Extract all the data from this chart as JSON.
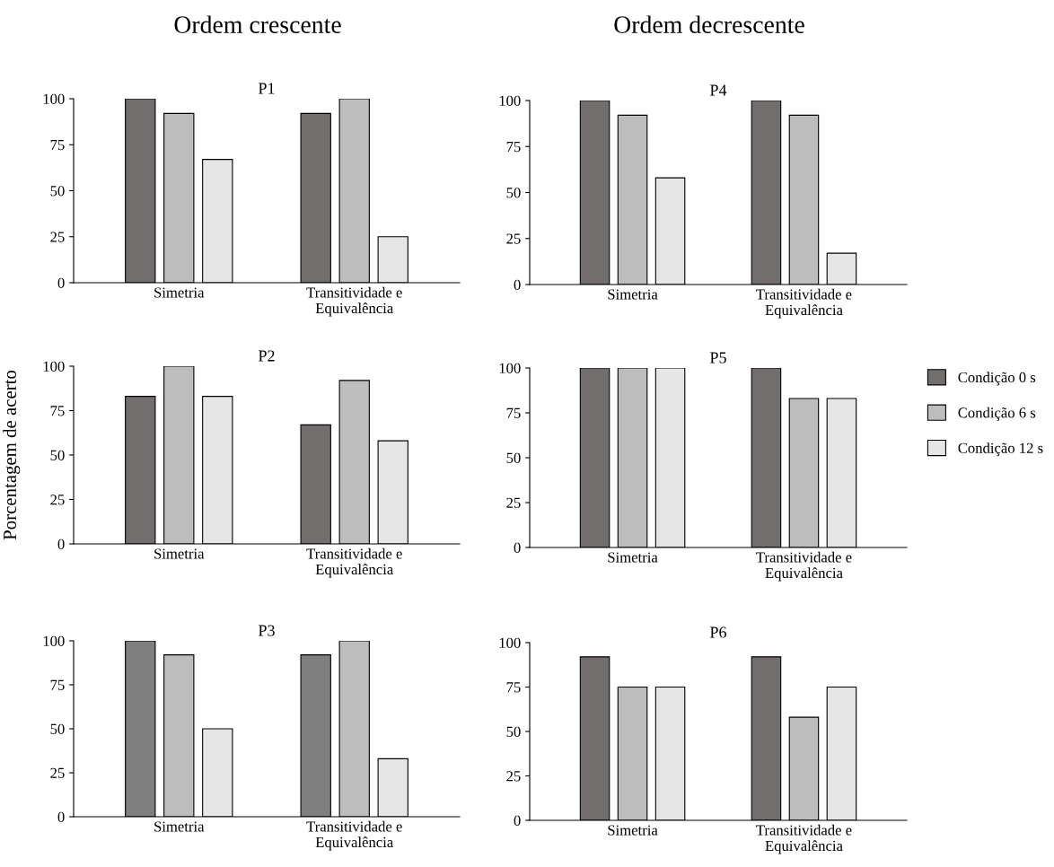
{
  "chart_data": [
    {
      "type": "bar",
      "title": "P1",
      "annotations": [
        "Ordem crescente"
      ],
      "categories": [
        "Simetria",
        "Transitividade e\nEquivalência"
      ],
      "ylim": [
        0,
        100
      ],
      "yticks": [
        0,
        25,
        50,
        75,
        100
      ],
      "series": [
        {
          "color": "#726e6e",
          "values": [
            100,
            92
          ]
        },
        {
          "color": "#bdbdbd",
          "values": [
            92,
            100
          ]
        },
        {
          "color": "#e6e6e6",
          "values": [
            67,
            25
          ]
        }
      ]
    },
    {
      "type": "bar",
      "title": "P4",
      "annotations": [
        "Ordem decrescente"
      ],
      "categories": [
        "Simetria",
        "Transitividade e\nEquivalência"
      ],
      "ylim": [
        0,
        100
      ],
      "yticks": [
        0,
        25,
        50,
        75,
        100
      ],
      "series": [
        {
          "color": "#726e6e",
          "values": [
            100,
            100
          ]
        },
        {
          "color": "#bdbdbd",
          "values": [
            92,
            92
          ]
        },
        {
          "color": "#e6e6e6",
          "values": [
            58,
            17
          ]
        }
      ]
    },
    {
      "type": "bar",
      "title": "P2",
      "ylabel": "Porcentagem de acerto",
      "categories": [
        "Simetria",
        "Transitividade e\nEquivalência"
      ],
      "ylim": [
        0,
        100
      ],
      "yticks": [
        0,
        25,
        50,
        75,
        100
      ],
      "series": [
        {
          "color": "#726e6e",
          "values": [
            83,
            67
          ]
        },
        {
          "color": "#bdbdbd",
          "values": [
            100,
            92
          ]
        },
        {
          "color": "#e6e6e6",
          "values": [
            83,
            58
          ]
        }
      ]
    },
    {
      "type": "bar",
      "title": "P5",
      "legend": "right",
      "categories": [
        "Simetria",
        "Transitividade e\nEquivalência"
      ],
      "ylim": [
        0,
        100
      ],
      "yticks": [
        0,
        25,
        50,
        75,
        100
      ],
      "series": [
        {
          "name": "Condição 0 s",
          "color": "#726e6e",
          "values": [
            100,
            100
          ]
        },
        {
          "name": "Condição 6 s",
          "color": "#bdbdbd",
          "values": [
            100,
            83
          ]
        },
        {
          "name": "Condição 12 s",
          "color": "#e6e6e6",
          "values": [
            100,
            83
          ]
        }
      ]
    },
    {
      "type": "bar",
      "title": "P3",
      "categories": [
        "Simetria",
        "Transitividade e\nEquivalência"
      ],
      "ylim": [
        0,
        100
      ],
      "yticks": [
        0,
        25,
        50,
        75,
        100
      ],
      "series": [
        {
          "color": "#7f7f7f",
          "values": [
            100,
            92
          ]
        },
        {
          "color": "#bdbdbd",
          "values": [
            92,
            100
          ]
        },
        {
          "color": "#e6e6e6",
          "values": [
            50,
            33
          ]
        }
      ]
    },
    {
      "type": "bar",
      "title": "P6",
      "categories": [
        "Simetria",
        "Transitividade e\nEquivalência"
      ],
      "ylim": [
        0,
        100
      ],
      "yticks": [
        0,
        25,
        50,
        75,
        100
      ],
      "series": [
        {
          "color": "#726e6e",
          "values": [
            92,
            92
          ]
        },
        {
          "color": "#bdbdbd",
          "values": [
            75,
            58
          ]
        },
        {
          "color": "#e6e6e6",
          "values": [
            75,
            75
          ]
        }
      ]
    }
  ]
}
